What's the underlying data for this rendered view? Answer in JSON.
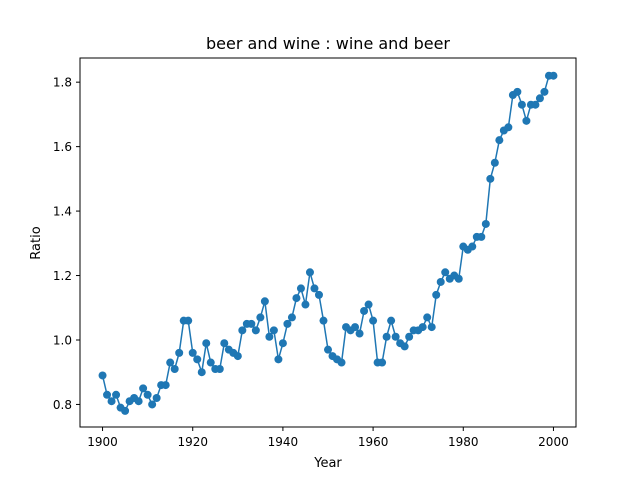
{
  "chart_data": {
    "type": "line",
    "title": "beer and wine : wine and beer",
    "xlabel": "Year",
    "ylabel": "Ratio",
    "xlim": [
      1895,
      2005
    ],
    "ylim": [
      0.73,
      1.875
    ],
    "xticks": [
      1900,
      1920,
      1940,
      1960,
      1980,
      2000
    ],
    "yticks": [
      0.8,
      1.0,
      1.2,
      1.4,
      1.6,
      1.8
    ],
    "ytick_labels": [
      "0.8",
      "1.0",
      "1.2",
      "1.4",
      "1.6",
      "1.8"
    ],
    "grid": false,
    "marker": "circle",
    "colors": {
      "series": "#1f77b4"
    },
    "series": [
      {
        "x": [
          1900,
          1901,
          1902,
          1903,
          1904,
          1905,
          1906,
          1907,
          1908,
          1909,
          1910,
          1911,
          1912,
          1913,
          1914,
          1915,
          1916,
          1917,
          1918,
          1919,
          1920,
          1921,
          1922,
          1923,
          1924,
          1925,
          1926,
          1927,
          1928,
          1929,
          1930,
          1931,
          1932,
          1933,
          1934,
          1935,
          1936,
          1937,
          1938,
          1939,
          1940,
          1941,
          1942,
          1943,
          1944,
          1945,
          1946,
          1947,
          1948,
          1949,
          1950,
          1951,
          1952,
          1953,
          1954,
          1955,
          1956,
          1957,
          1958,
          1959,
          1960,
          1961,
          1962,
          1963,
          1964,
          1965,
          1966,
          1967,
          1968,
          1969,
          1970,
          1971,
          1972,
          1973,
          1974,
          1975,
          1976,
          1977,
          1978,
          1979,
          1980,
          1981,
          1982,
          1983,
          1984,
          1985,
          1986,
          1987,
          1988,
          1989,
          1990,
          1991,
          1992,
          1993,
          1994,
          1995,
          1996,
          1997,
          1998,
          1999,
          2000
        ],
        "y": [
          0.89,
          0.83,
          0.81,
          0.83,
          0.79,
          0.78,
          0.81,
          0.82,
          0.81,
          0.85,
          0.83,
          0.8,
          0.82,
          0.86,
          0.86,
          0.93,
          0.91,
          0.96,
          1.06,
          1.06,
          0.96,
          0.94,
          0.9,
          0.99,
          0.93,
          0.91,
          0.91,
          0.99,
          0.97,
          0.96,
          0.95,
          1.03,
          1.05,
          1.05,
          1.03,
          1.07,
          1.12,
          1.01,
          1.03,
          0.94,
          0.99,
          1.05,
          1.07,
          1.13,
          1.16,
          1.11,
          1.21,
          1.16,
          1.14,
          1.06,
          0.97,
          0.95,
          0.94,
          0.93,
          1.04,
          1.03,
          1.04,
          1.02,
          1.09,
          1.11,
          1.06,
          0.93,
          0.93,
          1.01,
          1.06,
          1.01,
          0.99,
          0.98,
          1.01,
          1.03,
          1.03,
          1.04,
          1.07,
          1.04,
          1.14,
          1.18,
          1.21,
          1.19,
          1.2,
          1.19,
          1.29,
          1.28,
          1.29,
          1.32,
          1.32,
          1.36,
          1.5,
          1.55,
          1.62,
          1.65,
          1.66,
          1.76,
          1.77,
          1.73,
          1.68,
          1.73,
          1.73,
          1.75,
          1.77,
          1.82,
          1.82
        ]
      }
    ]
  }
}
